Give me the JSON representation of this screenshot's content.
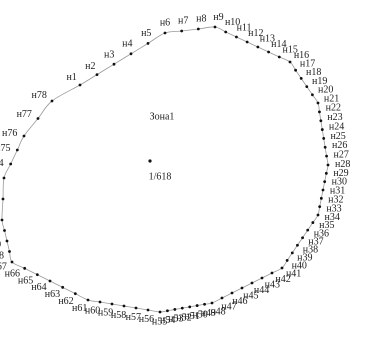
{
  "zone": {
    "label": "Зона1",
    "count": "1/618"
  },
  "nodes": [
    "н1",
    "н2",
    "н3",
    "н4",
    "н5",
    "н6",
    "н7",
    "н8",
    "н9",
    "н10",
    "н11",
    "н12",
    "н13",
    "н14",
    "н15",
    "н16",
    "н17",
    "н18",
    "н19",
    "н20",
    "н21",
    "н22",
    "н23",
    "н24",
    "н25",
    "н26",
    "н27",
    "н28",
    "н29",
    "н30",
    "н31",
    "н32",
    "н33",
    "н34",
    "н35",
    "н36",
    "н37",
    "н38",
    "н39",
    "н40",
    "н41",
    "н42",
    "н43",
    "н44",
    "н45",
    "н46",
    "н47",
    "н48",
    "н49",
    "н50",
    "н51",
    "н52",
    "н53",
    "н54",
    "н55",
    "н56",
    "н57",
    "н58",
    "н59",
    "н60",
    "н61",
    "н62",
    "н63",
    "н64",
    "н65",
    "н66",
    "н67",
    "н68",
    "н69",
    "н70",
    "н71",
    "н72",
    "н73",
    "н74",
    "н75",
    "н76",
    "н77",
    "н78"
  ]
}
